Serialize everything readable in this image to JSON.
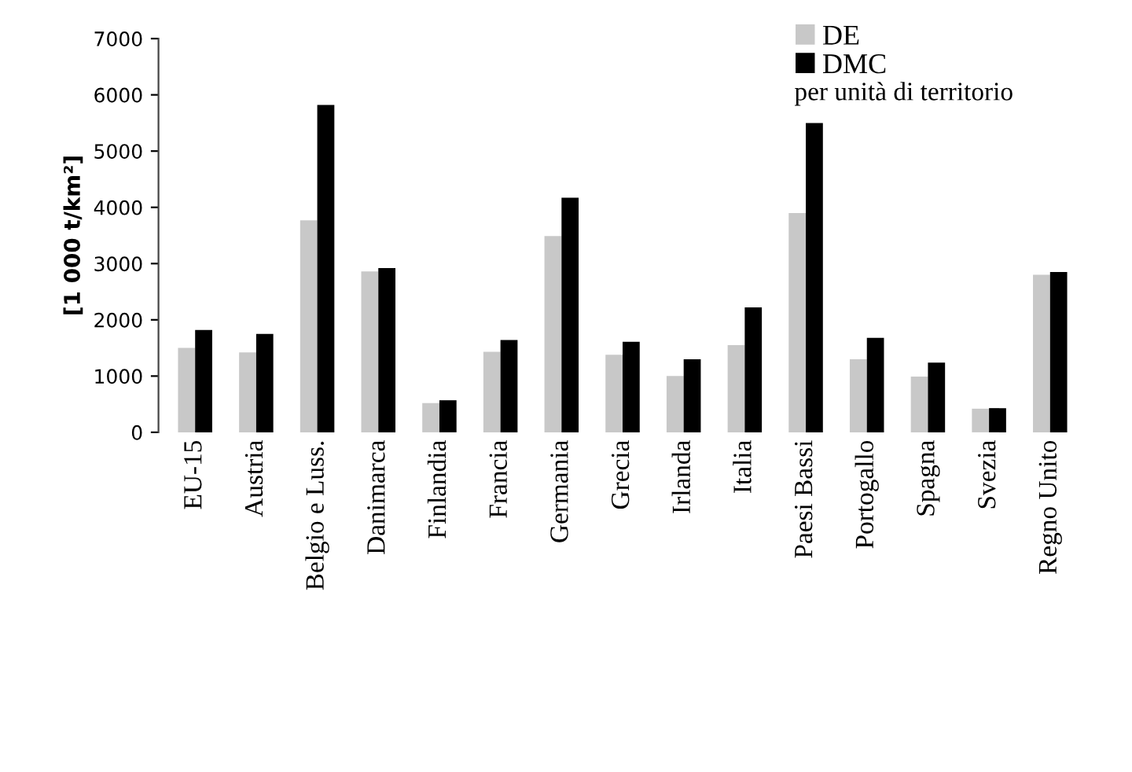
{
  "chart_data": {
    "type": "bar",
    "ylabel": "[1 000 t/km²]",
    "categories": [
      "EU-15",
      "Austria",
      "Belgio e Luss.",
      "Danimarca",
      "Finlandia",
      "Francia",
      "Germania",
      "Grecia",
      "Irlanda",
      "Italia",
      "Paesi Bassi",
      "Portogallo",
      "Spagna",
      "Svezia",
      "Regno Unito"
    ],
    "series": [
      {
        "name": "DE",
        "color": "#c8c8c8",
        "values": [
          1500,
          1420,
          3770,
          2860,
          520,
          1430,
          3490,
          1380,
          1000,
          1550,
          3900,
          1300,
          990,
          420,
          2800
        ]
      },
      {
        "name": "DMC",
        "color": "#000000",
        "values": [
          1820,
          1750,
          5820,
          2920,
          570,
          1640,
          4170,
          1610,
          1300,
          2220,
          5500,
          1680,
          1240,
          430,
          2850
        ]
      }
    ],
    "annotations": [
      "per unità di territorio"
    ],
    "ylim": [
      0,
      7000
    ],
    "yticks": [
      0,
      1000,
      2000,
      3000,
      4000,
      5000,
      6000,
      7000
    ],
    "grid": false,
    "legend": "top right"
  }
}
